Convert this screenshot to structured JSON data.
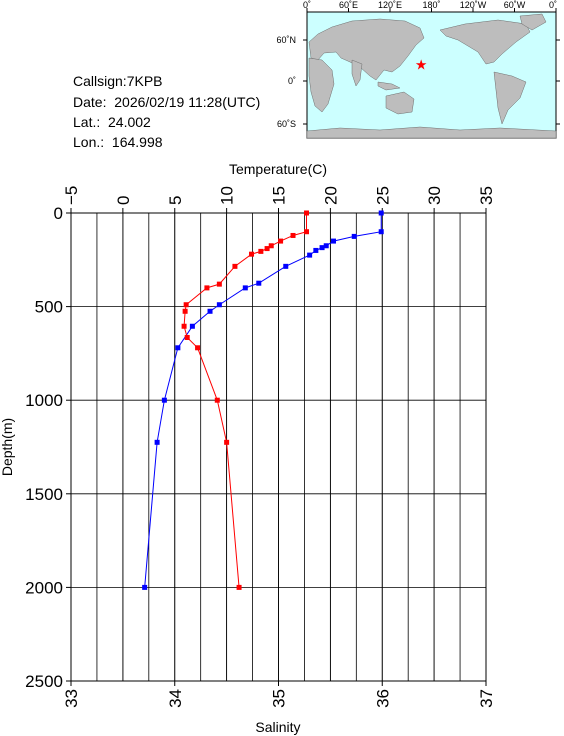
{
  "station": {
    "callsign_line": "Callsign:7KPB",
    "date_line": "Date:  2026/02/19 11:28(UTC)",
    "lat_line": "Lat.:  24.002",
    "lon_line": "Lon.:  164.998"
  },
  "map": {
    "top_labels": [
      "0˚",
      "60˚E",
      "120˚E",
      "180˚",
      "120˚W",
      "60˚W",
      "0˚"
    ],
    "left_labels": [
      "60˚N",
      "0˚",
      "60˚S"
    ],
    "ocean_color": "#ccffff",
    "land_color": "#bdbdbd",
    "marker": "red-star",
    "marker_color": "#ff0000",
    "marker_lon": 165.0,
    "marker_lat": 24.0
  },
  "chart_data": {
    "type": "line",
    "ylabel": "Depth(m)",
    "ylim": [
      2500,
      0
    ],
    "yticks": [
      "0",
      "500",
      "1000",
      "1500",
      "2000",
      "2500"
    ],
    "y_values": [
      0,
      500,
      1000,
      1500,
      2000,
      2500
    ],
    "top_axis": {
      "label": "Temperature(C)",
      "range": [
        -5,
        35
      ],
      "ticks": [
        "−5",
        "0",
        "5",
        "10",
        "15",
        "20",
        "25",
        "30",
        "35"
      ],
      "tick_values": [
        -5,
        0,
        5,
        10,
        15,
        20,
        25,
        30,
        35
      ]
    },
    "bottom_axis": {
      "label": "Salinity",
      "range": [
        33,
        37
      ],
      "ticks": [
        "33",
        "34",
        "35",
        "36",
        "37"
      ],
      "tick_values": [
        33,
        34,
        35,
        36,
        37
      ]
    },
    "grid": true,
    "series": [
      {
        "axis": "temperature",
        "color": "#0000ff",
        "points": [
          {
            "x": 24.9,
            "y": 0
          },
          {
            "x": 24.9,
            "y": 100
          },
          {
            "x": 22.3,
            "y": 125
          },
          {
            "x": 20.3,
            "y": 150
          },
          {
            "x": 19.6,
            "y": 175
          },
          {
            "x": 19.2,
            "y": 185
          },
          {
            "x": 18.6,
            "y": 200
          },
          {
            "x": 18.0,
            "y": 225
          },
          {
            "x": 15.7,
            "y": 285
          },
          {
            "x": 13.1,
            "y": 375
          },
          {
            "x": 11.8,
            "y": 400
          },
          {
            "x": 9.3,
            "y": 490
          },
          {
            "x": 8.4,
            "y": 525
          },
          {
            "x": 6.7,
            "y": 605
          },
          {
            "x": 5.3,
            "y": 720
          },
          {
            "x": 4.0,
            "y": 1000
          },
          {
            "x": 3.3,
            "y": 1225
          },
          {
            "x": 2.1,
            "y": 2000
          }
        ]
      },
      {
        "axis": "salinity",
        "color": "#ff0000",
        "points": [
          {
            "x": 35.27,
            "y": 0
          },
          {
            "x": 35.27,
            "y": 100
          },
          {
            "x": 35.14,
            "y": 120
          },
          {
            "x": 35.02,
            "y": 150
          },
          {
            "x": 34.93,
            "y": 175
          },
          {
            "x": 34.89,
            "y": 190
          },
          {
            "x": 34.83,
            "y": 205
          },
          {
            "x": 34.74,
            "y": 220
          },
          {
            "x": 34.58,
            "y": 285
          },
          {
            "x": 34.43,
            "y": 380
          },
          {
            "x": 34.31,
            "y": 400
          },
          {
            "x": 34.11,
            "y": 490
          },
          {
            "x": 34.1,
            "y": 525
          },
          {
            "x": 34.09,
            "y": 605
          },
          {
            "x": 34.12,
            "y": 665
          },
          {
            "x": 34.22,
            "y": 720
          },
          {
            "x": 34.41,
            "y": 1000
          },
          {
            "x": 34.5,
            "y": 1225
          },
          {
            "x": 34.62,
            "y": 2000
          }
        ]
      }
    ]
  }
}
